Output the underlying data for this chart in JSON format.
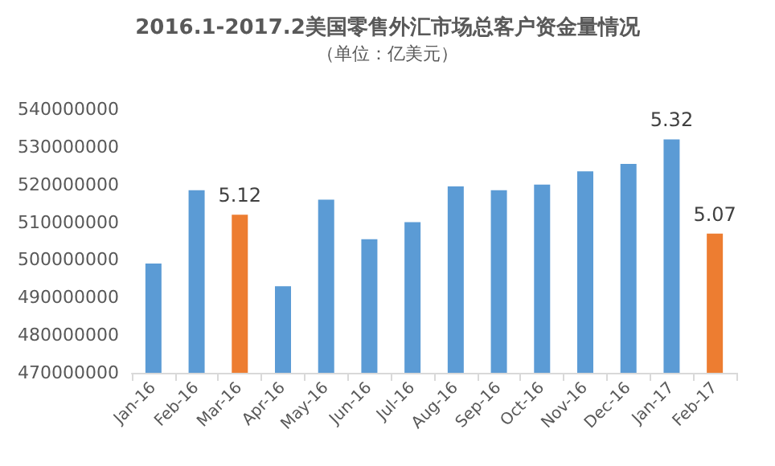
{
  "chart_data": {
    "type": "bar",
    "title": "2016.1-2017.2美国零售外汇市场总客户资金量情况",
    "subtitle": "（单位：亿美元）",
    "categories": [
      "Jan-16",
      "Feb-16",
      "Mar-16",
      "Apr-16",
      "May-16",
      "Jun-16",
      "Jul-16",
      "Aug-16",
      "Sep-16",
      "Oct-16",
      "Nov-16",
      "Dec-16",
      "Jan-17",
      "Feb-17"
    ],
    "values": [
      499000000,
      518500000,
      512000000,
      493000000,
      516000000,
      505500000,
      510000000,
      519500000,
      518500000,
      520000000,
      523500000,
      525500000,
      532000000,
      507000000
    ],
    "colors": [
      "#5b9bd5",
      "#5b9bd5",
      "#ed7d31",
      "#5b9bd5",
      "#5b9bd5",
      "#5b9bd5",
      "#5b9bd5",
      "#5b9bd5",
      "#5b9bd5",
      "#5b9bd5",
      "#5b9bd5",
      "#5b9bd5",
      "#5b9bd5",
      "#ed7d31"
    ],
    "annotations": [
      {
        "text": "5.12",
        "x": "Mar-16",
        "y": 512000000
      },
      {
        "text": "5.32",
        "x": "Jan-17",
        "y": 532000000
      },
      {
        "text": "5.07",
        "x": "Feb-17",
        "y": 507000000
      }
    ],
    "ylim": [
      470000000,
      540000000
    ],
    "yticks": [
      470000000,
      480000000,
      490000000,
      500000000,
      510000000,
      520000000,
      530000000,
      540000000
    ],
    "grid": false
  }
}
